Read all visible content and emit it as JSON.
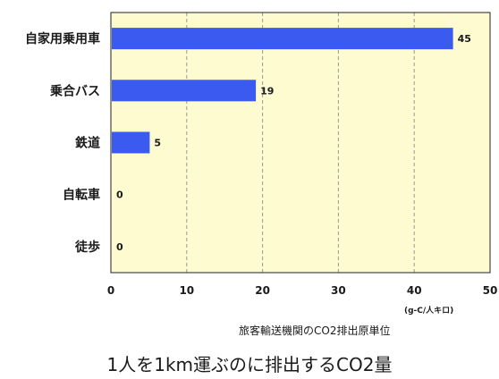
{
  "chart_data": {
    "type": "bar",
    "orientation": "horizontal",
    "categories": [
      "自家用乗用車",
      "乗合バス",
      "鉄道",
      "自転車",
      "徒歩"
    ],
    "values": [
      45,
      19,
      5,
      0,
      0
    ],
    "value_labels": [
      "45",
      "19",
      "5",
      "0",
      "0"
    ],
    "xlim": [
      0,
      50
    ],
    "x_ticks": [
      0,
      10,
      20,
      30,
      40,
      50
    ],
    "unit": "(g-C/人キロ)",
    "subtitle": "旅客輸送機関のCO2排出原単位",
    "title": "1人を1km運ぶのに排出するCO2量",
    "grid": "vertical dashed",
    "bar_color": "#3b5bf0",
    "plot_background": "#fdfbcf"
  }
}
